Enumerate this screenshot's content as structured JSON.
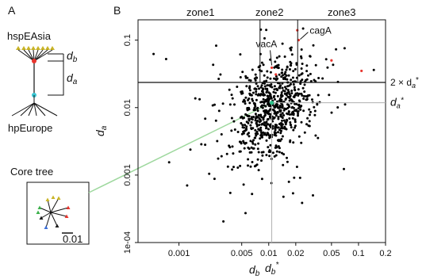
{
  "panels": {
    "a": {
      "label": "A"
    },
    "b": {
      "label": "B"
    }
  },
  "tree_schematic": {
    "top_label": "hspEAsia",
    "bottom_label": "hpEurope",
    "branch_labels": [
      "d",
      "d"
    ],
    "branch_subscripts": [
      "b",
      "a"
    ]
  },
  "core_tree": {
    "title": "Core tree",
    "scale_label": "0.01"
  },
  "colors": {
    "points": "#000000",
    "highlight": "#e8352e",
    "average": "#2fc08a",
    "tree_node_red": "#e8352e",
    "tree_node_cyan": "#39c6d3",
    "connector": "#9ed89e",
    "tip_yellow": "#c9b427"
  },
  "chart_data": {
    "type": "scatter",
    "xscale": "log",
    "yscale": "log",
    "xlim": [
      0.00035,
      0.2
    ],
    "ylim": [
      0.0001,
      0.2
    ],
    "x_ticks": [
      0.001,
      0.005,
      0.01,
      0.02,
      0.05,
      0.1,
      0.2
    ],
    "x_tick_labels": [
      "0.001",
      "0.005",
      "0.01",
      "0.02",
      "0.05",
      "0.1",
      "0.2"
    ],
    "y_ticks": [
      0.0001,
      0.001,
      0.01,
      0.1
    ],
    "y_tick_labels": [
      "1e-04",
      "0.001",
      "0.01",
      "0.1"
    ],
    "xlabel": "d",
    "xlabel_sub": "b",
    "ylabel": "d",
    "ylabel_sub": "a",
    "zones": [
      "zone1",
      "zone2",
      "zone3"
    ],
    "zone_x_bounds": [
      0.008,
      0.021
    ],
    "threshold_y": 0.0236,
    "threshold_label": "2 × d",
    "threshold_label_sub": "a",
    "threshold_label_sup": "*",
    "mean_da": 0.0118,
    "mean_db": 0.0108,
    "mean_da_label": "d",
    "mean_da_sub": "a",
    "mean_da_sup": "*",
    "mean_db_label": "d",
    "mean_db_sub": "b",
    "mean_db_sup": "*",
    "gene_annotations": [
      {
        "name": "vacA",
        "x": 0.0108,
        "y": 0.039
      },
      {
        "name": "cagA",
        "x": 0.0215,
        "y": 0.1
      }
    ],
    "highlight_points": [
      {
        "x": 0.0108,
        "y": 0.039
      },
      {
        "x": 0.0215,
        "y": 0.1
      },
      {
        "x": 0.0208,
        "y": 0.14
      },
      {
        "x": 0.012,
        "y": 0.031
      },
      {
        "x": 0.108,
        "y": 0.035
      },
      {
        "x": 0.05,
        "y": 0.05
      }
    ],
    "point_count": 780,
    "x_center": 0.011,
    "y_center": 0.0095
  }
}
